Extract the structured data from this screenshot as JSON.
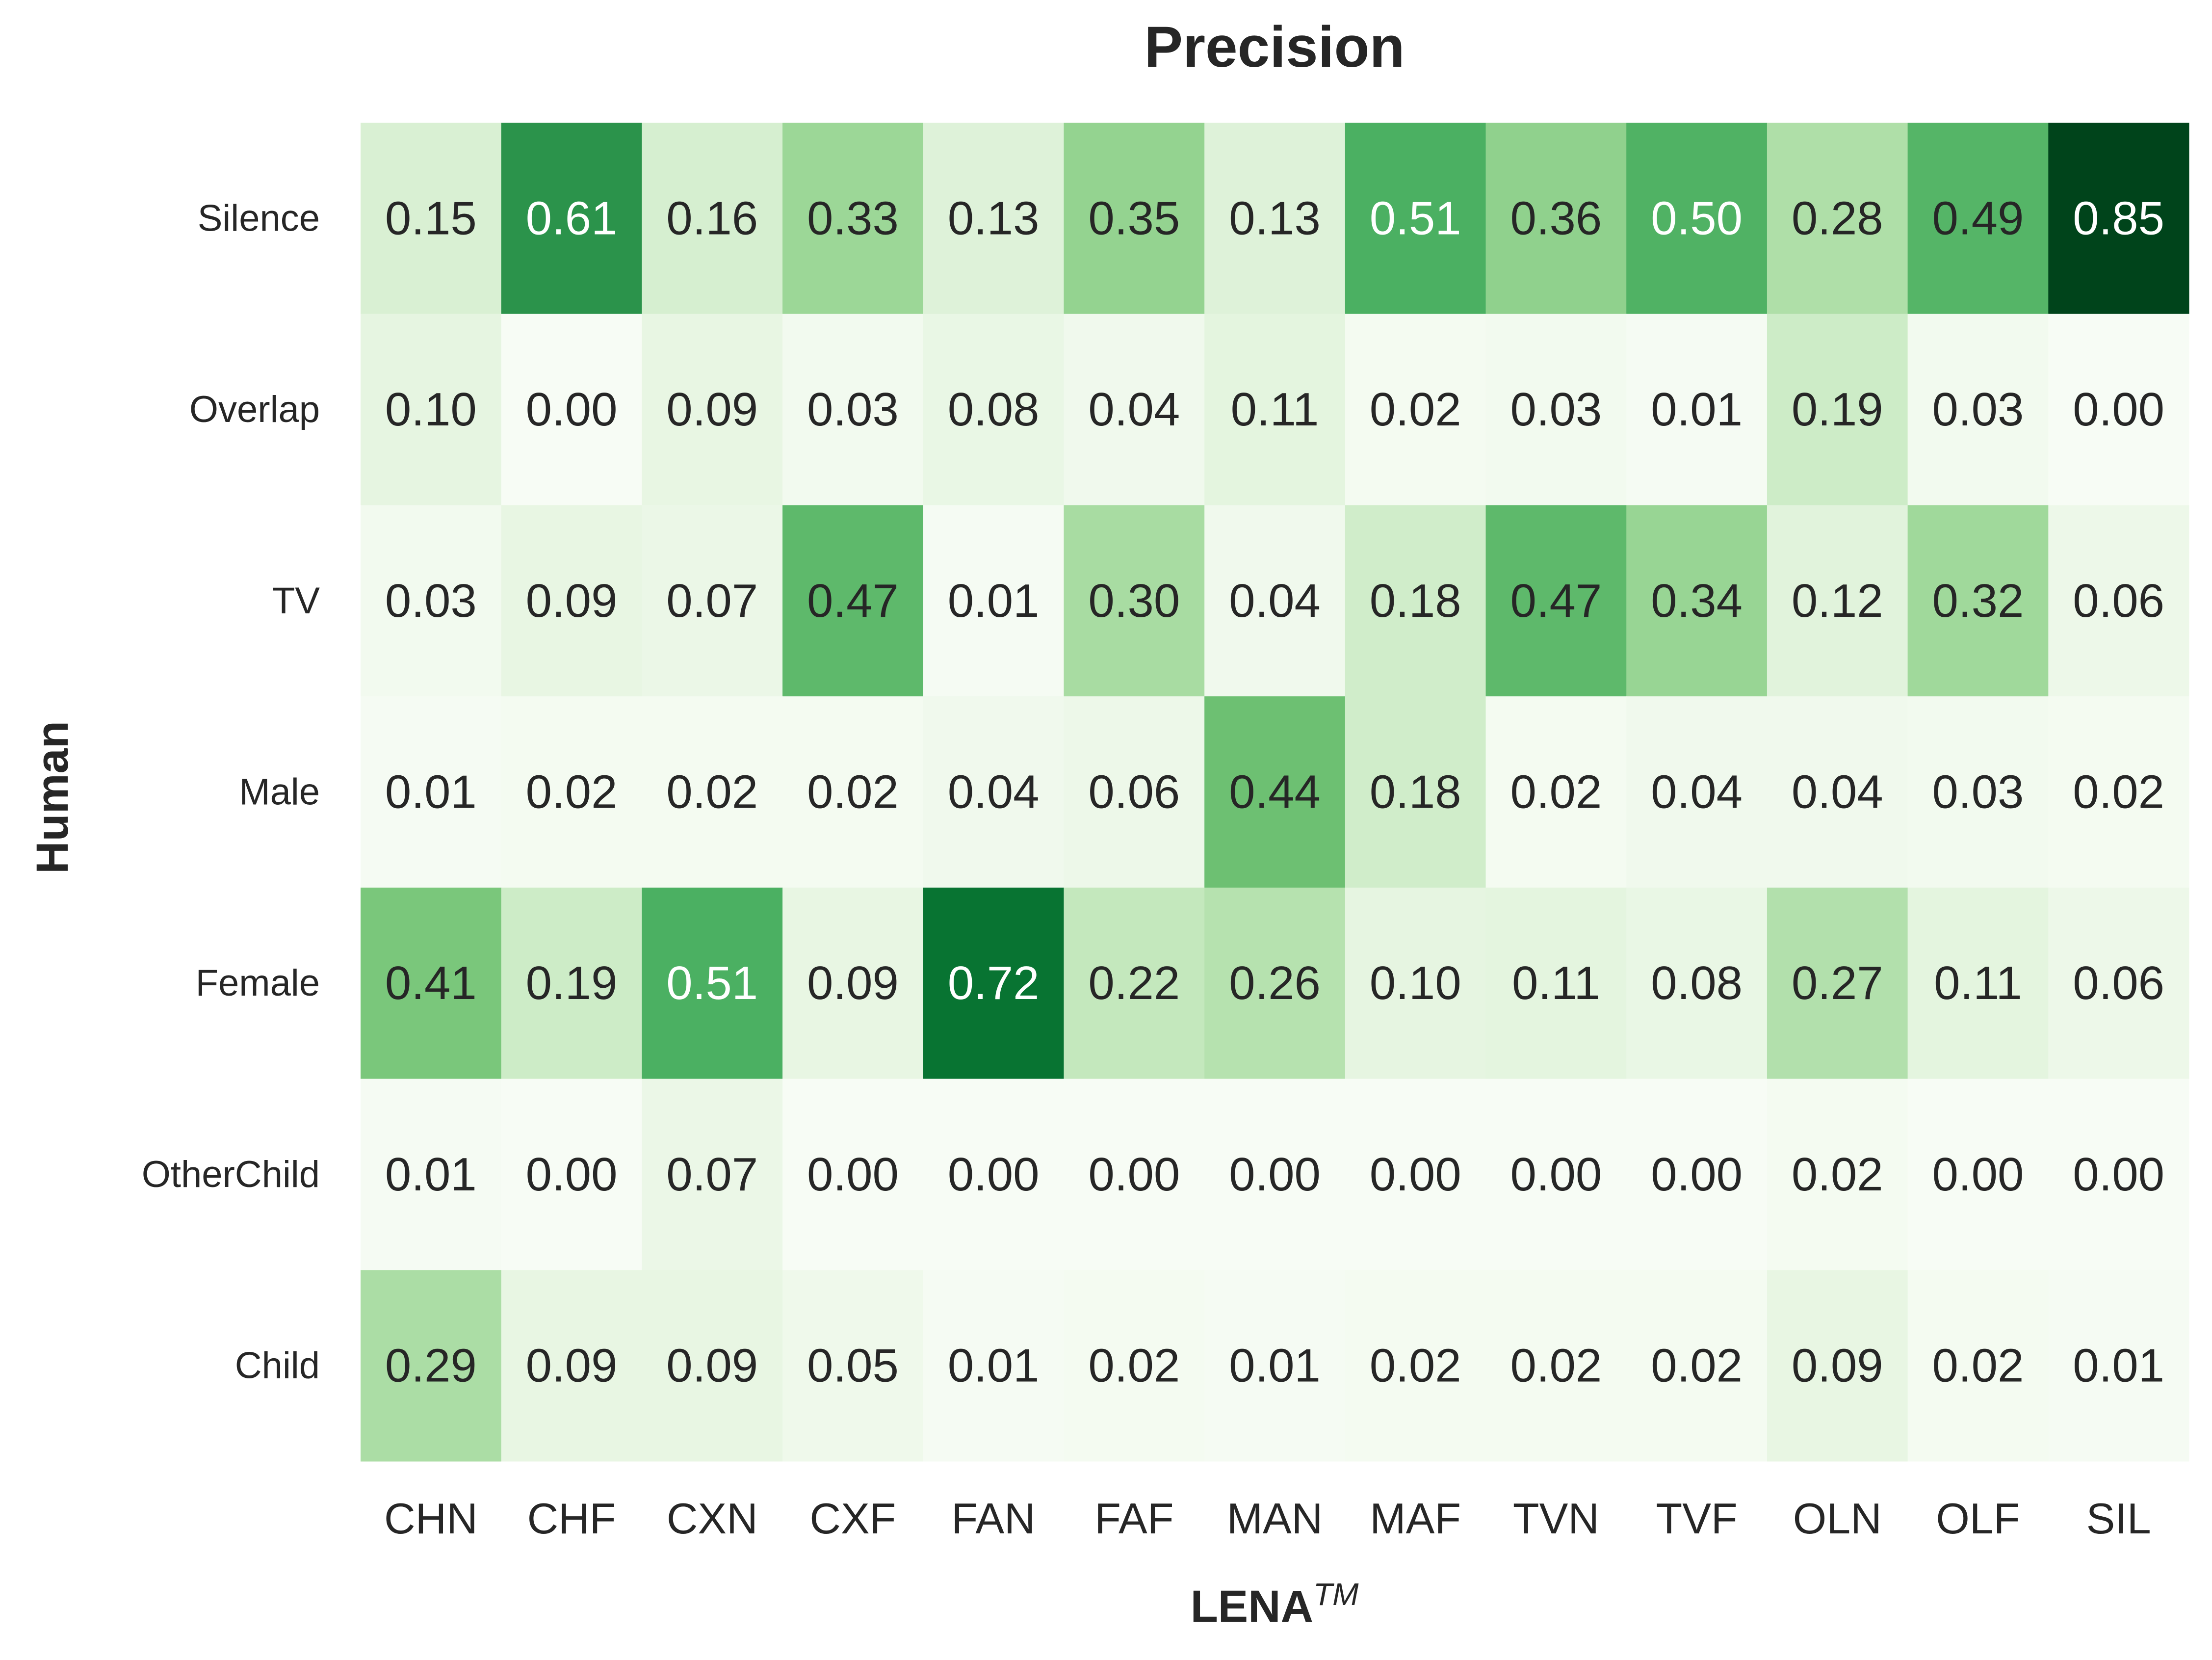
{
  "chart_data": {
    "type": "heatmap",
    "title": "Precision",
    "xlabel": "LENA",
    "xlabel_superscript": "TM",
    "ylabel": "Human",
    "x_categories": [
      "CHN",
      "CHF",
      "CXN",
      "CXF",
      "FAN",
      "FAF",
      "MAN",
      "MAF",
      "TVN",
      "TVF",
      "OLN",
      "OLF",
      "SIL"
    ],
    "y_categories": [
      "Silence",
      "Overlap",
      "TV",
      "Male",
      "Female",
      "OtherChild",
      "Child"
    ],
    "values": [
      [
        0.15,
        0.61,
        0.16,
        0.33,
        0.13,
        0.35,
        0.13,
        0.51,
        0.36,
        0.5,
        0.28,
        0.49,
        0.85
      ],
      [
        0.1,
        0.0,
        0.09,
        0.03,
        0.08,
        0.04,
        0.11,
        0.02,
        0.03,
        0.01,
        0.19,
        0.03,
        0.0
      ],
      [
        0.03,
        0.09,
        0.07,
        0.47,
        0.01,
        0.3,
        0.04,
        0.18,
        0.47,
        0.34,
        0.12,
        0.32,
        0.06
      ],
      [
        0.01,
        0.02,
        0.02,
        0.02,
        0.04,
        0.06,
        0.44,
        0.18,
        0.02,
        0.04,
        0.04,
        0.03,
        0.02
      ],
      [
        0.41,
        0.19,
        0.51,
        0.09,
        0.72,
        0.22,
        0.26,
        0.1,
        0.11,
        0.08,
        0.27,
        0.11,
        0.06
      ],
      [
        0.01,
        0.0,
        0.07,
        0.0,
        0.0,
        0.0,
        0.0,
        0.0,
        0.0,
        0.0,
        0.02,
        0.0,
        0.0
      ],
      [
        0.29,
        0.09,
        0.09,
        0.05,
        0.01,
        0.02,
        0.01,
        0.02,
        0.02,
        0.02,
        0.09,
        0.02,
        0.01
      ]
    ],
    "value_format": "2 decimals",
    "colormap": "Greens",
    "colormap_colors": [
      "#f7fcf5",
      "#e5f5e0",
      "#c7e9c0",
      "#a1d99b",
      "#74c476",
      "#41ab5d",
      "#238b45",
      "#006d2c",
      "#00441b"
    ],
    "grid": false,
    "colorbar": false
  }
}
